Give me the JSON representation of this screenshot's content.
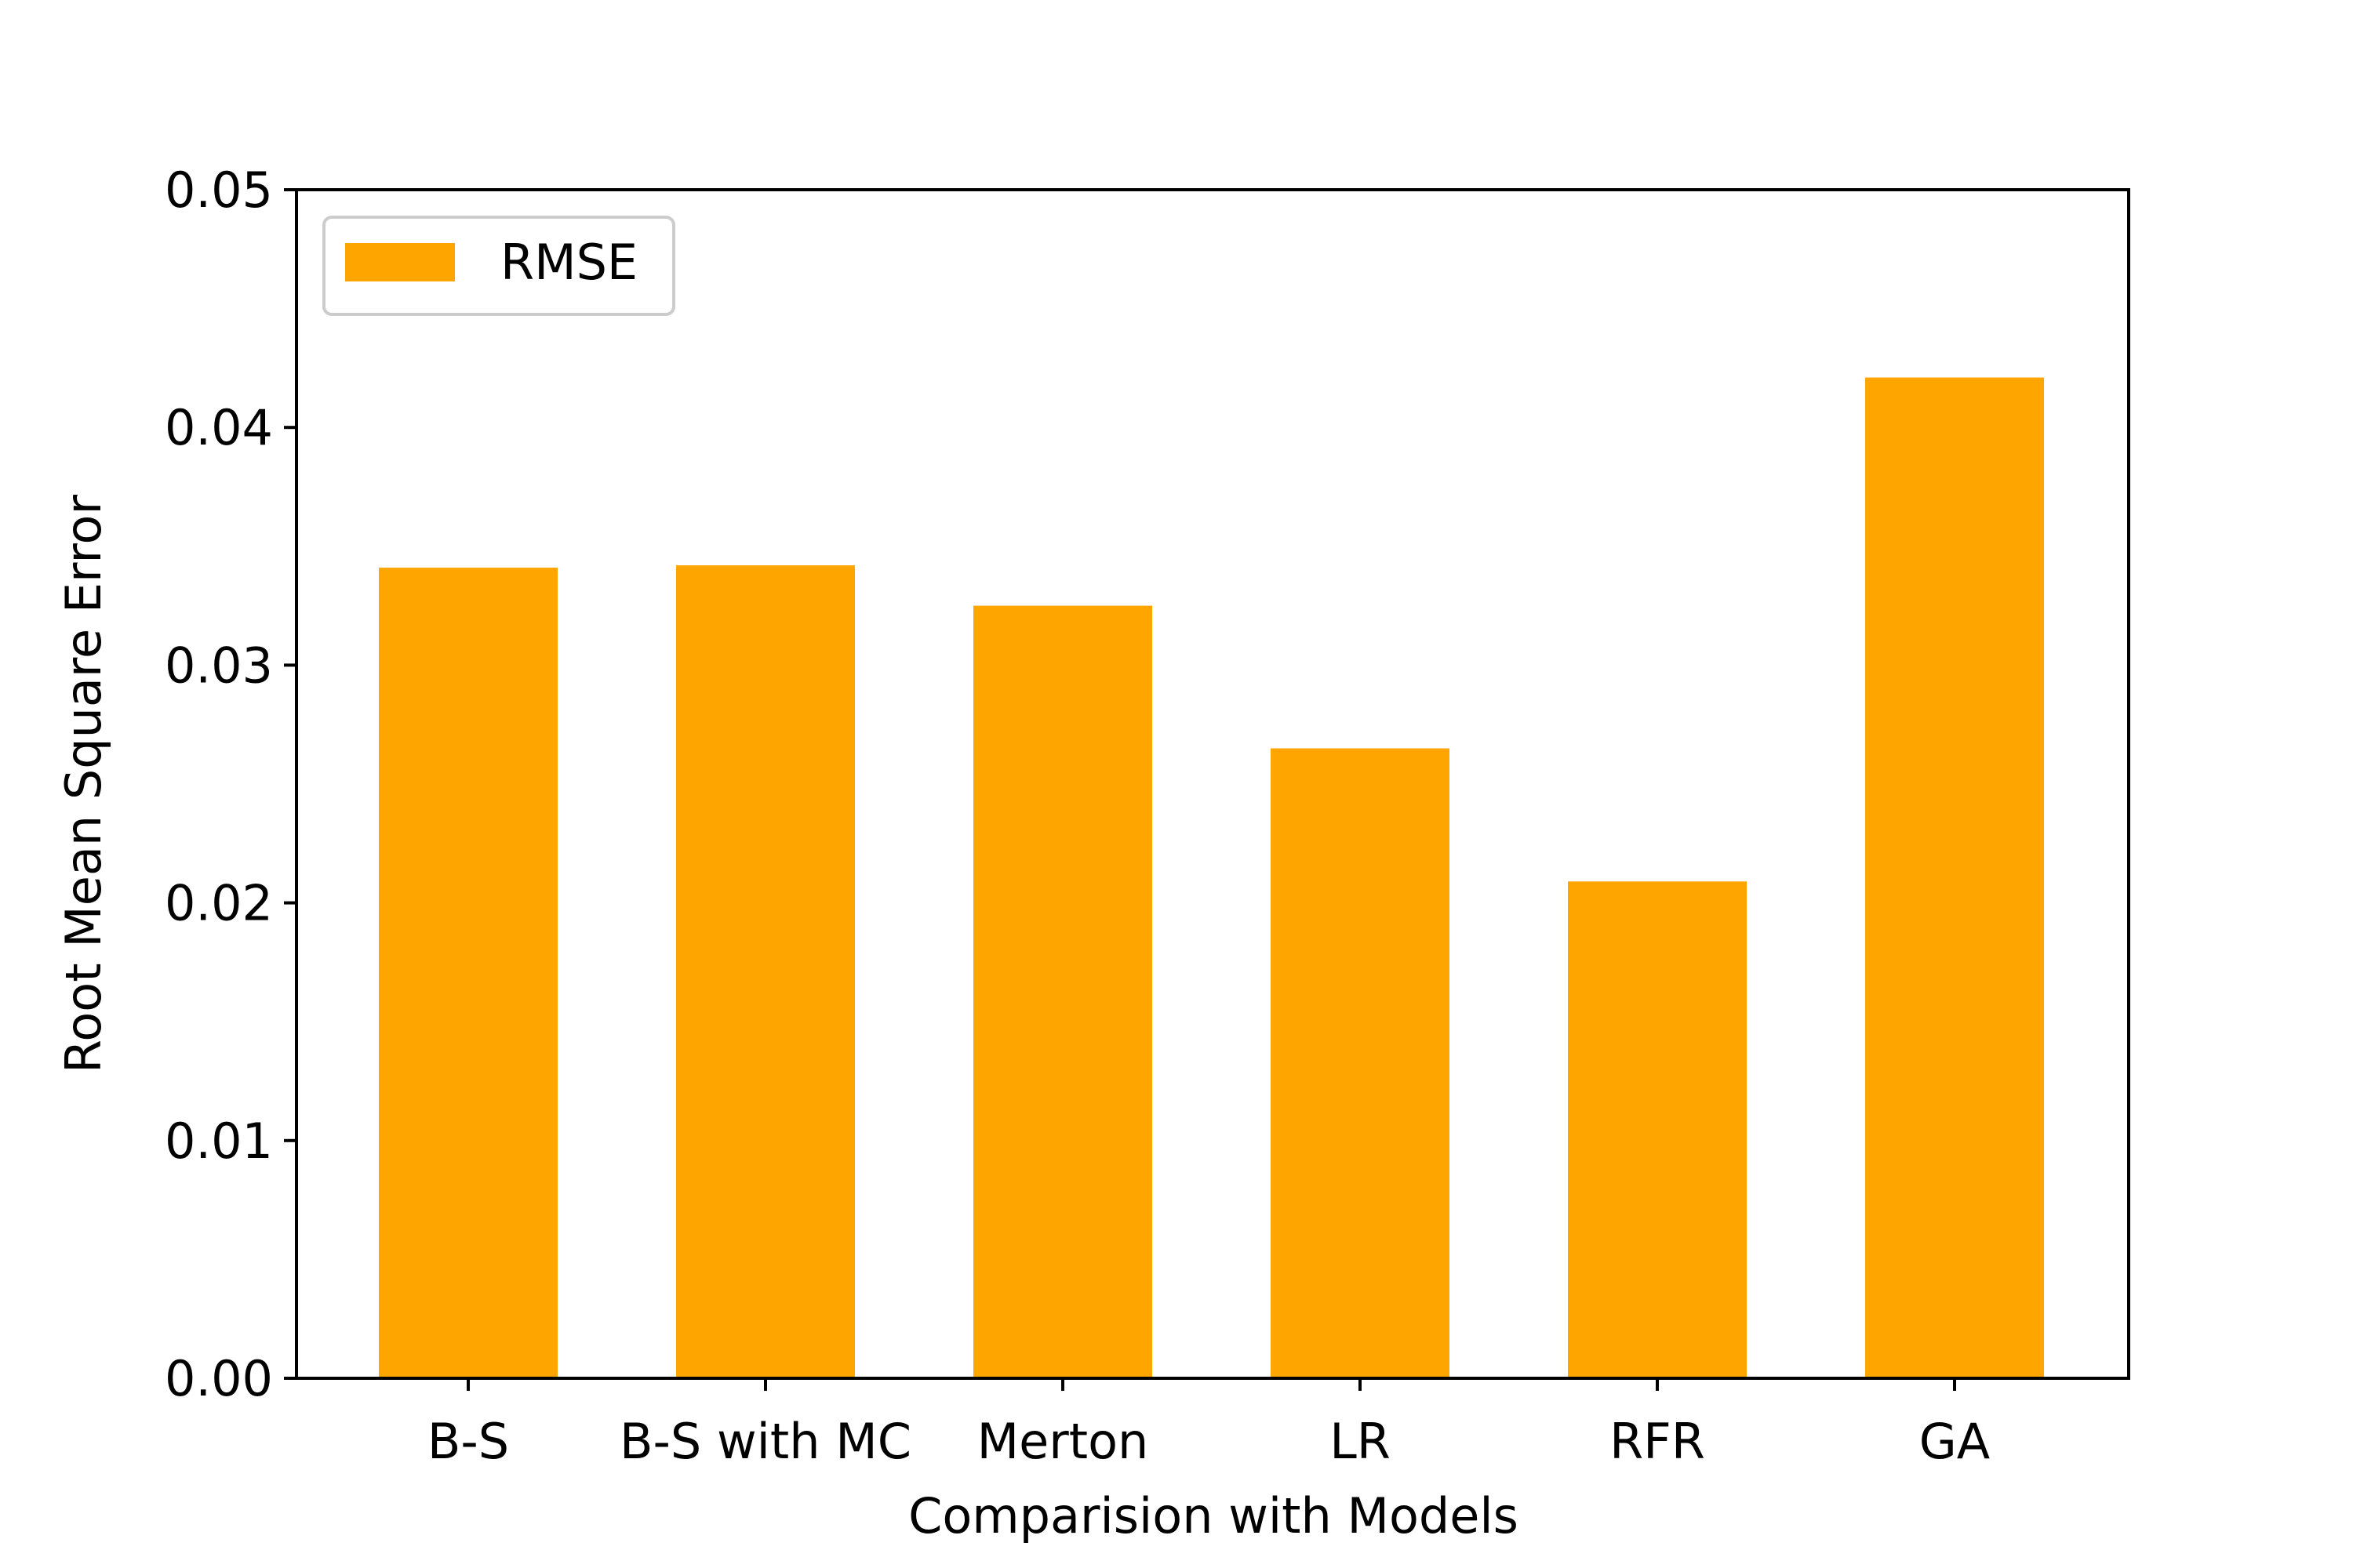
{
  "chart_data": {
    "type": "bar",
    "categories": [
      "B-S",
      "B-S with MC",
      "Merton",
      "LR",
      "RFR",
      "GA"
    ],
    "series": [
      {
        "name": "RMSE",
        "values": [
          0.0341,
          0.0342,
          0.0325,
          0.0265,
          0.0209,
          0.0421
        ]
      }
    ],
    "xlabel": "Comparision with Models",
    "ylabel": "Root Mean Square Error",
    "ylim": [
      0,
      0.05
    ],
    "yticks": [
      "0.00",
      "0.01",
      "0.02",
      "0.03",
      "0.04",
      "0.05"
    ],
    "grid": false,
    "legend_position": "top-left",
    "colors": {
      "bar": "#ffa500",
      "axis": "#000000",
      "legend_border": "#cccccc"
    }
  }
}
